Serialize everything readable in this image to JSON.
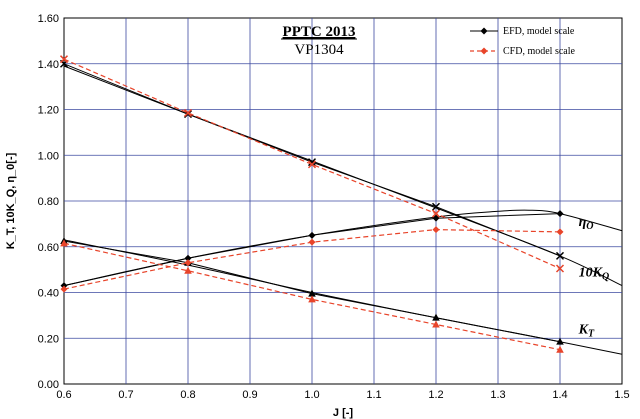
{
  "chart_data": {
    "type": "line",
    "title": "PPTC 2013",
    "subtitle": "VP1304",
    "xlabel": "J [-]",
    "ylabel": "K_T, 10K_Q, η_0[-]",
    "xlim": [
      0.6,
      1.5
    ],
    "ylim": [
      0.0,
      1.6
    ],
    "xticks": [
      0.6,
      0.7,
      0.8,
      0.9,
      1.0,
      1.1,
      1.2,
      1.3,
      1.4,
      1.5
    ],
    "xtick_labels": [
      "0.6",
      "0.7",
      "0.8",
      "0.9",
      "1.0",
      "1.1",
      "1.2",
      "1.3",
      "1.4",
      "1.5"
    ],
    "yticks": [
      0.0,
      0.2,
      0.4,
      0.6,
      0.8,
      1.0,
      1.2,
      1.4,
      1.6
    ],
    "ytick_labels": [
      "0.00",
      "0.20",
      "0.40",
      "0.60",
      "0.80",
      "1.00",
      "1.20",
      "1.40",
      "1.60"
    ],
    "grid": true,
    "legend": {
      "placement": "top-right",
      "entries": [
        "EFD, model scale",
        "CFD, model scale"
      ]
    },
    "series": [
      {
        "name": "EFD, model scale",
        "quantity": "K_T",
        "color": "#000000",
        "marker": "triangle",
        "x": [
          0.6,
          0.8,
          1.0,
          1.2,
          1.4
        ],
        "y": [
          0.625,
          0.53,
          0.395,
          0.29,
          0.185
        ]
      },
      {
        "name": "EFD, model scale",
        "quantity": "10K_Q",
        "color": "#000000",
        "marker": "x",
        "x": [
          0.6,
          0.8,
          1.0,
          1.2,
          1.4
        ],
        "y": [
          1.4,
          1.18,
          0.97,
          0.775,
          0.56
        ]
      },
      {
        "name": "EFD, model scale",
        "quantity": "η_0",
        "color": "#000000",
        "marker": "diamond",
        "x": [
          0.6,
          0.8,
          1.0,
          1.2,
          1.4
        ],
        "y": [
          0.43,
          0.55,
          0.65,
          0.725,
          0.745
        ]
      },
      {
        "name": "CFD, model scale",
        "quantity": "K_T",
        "color": "#e8442a",
        "marker": "triangle",
        "x": [
          0.6,
          0.8,
          1.0,
          1.2,
          1.4
        ],
        "y": [
          0.615,
          0.495,
          0.37,
          0.26,
          0.15
        ]
      },
      {
        "name": "CFD, model scale",
        "quantity": "10K_Q",
        "color": "#e8442a",
        "marker": "x",
        "x": [
          0.6,
          0.8,
          1.0,
          1.2,
          1.4
        ],
        "y": [
          1.42,
          1.185,
          0.96,
          0.745,
          0.505
        ]
      },
      {
        "name": "CFD, model scale",
        "quantity": "η_0",
        "color": "#e8442a",
        "marker": "diamond",
        "x": [
          0.6,
          0.8,
          1.0,
          1.2,
          1.4
        ],
        "y": [
          0.415,
          0.53,
          0.62,
          0.675,
          0.665
        ]
      }
    ],
    "fit_curves": [
      {
        "quantity": "K_T",
        "x": [
          0.6,
          0.8,
          1.0,
          1.2,
          1.4,
          1.5
        ],
        "y": [
          0.63,
          0.52,
          0.4,
          0.29,
          0.185,
          0.13
        ]
      },
      {
        "quantity": "10K_Q",
        "x": [
          0.6,
          0.8,
          1.0,
          1.2,
          1.4,
          1.5
        ],
        "y": [
          1.39,
          1.18,
          0.975,
          0.77,
          0.56,
          0.43
        ]
      },
      {
        "quantity": "η_0",
        "x": [
          0.6,
          0.8,
          1.0,
          1.2,
          1.3,
          1.35,
          1.4,
          1.5
        ],
        "y": [
          0.43,
          0.55,
          0.65,
          0.73,
          0.755,
          0.76,
          0.745,
          0.67
        ]
      }
    ],
    "annotations": [
      {
        "text": "η",
        "sub": "O",
        "x": 1.43,
        "y": 0.69
      },
      {
        "text": "10K",
        "sub": "Q",
        "x": 1.43,
        "y": 0.47
      },
      {
        "text": "K",
        "sub": "T",
        "x": 1.43,
        "y": 0.22
      }
    ]
  }
}
